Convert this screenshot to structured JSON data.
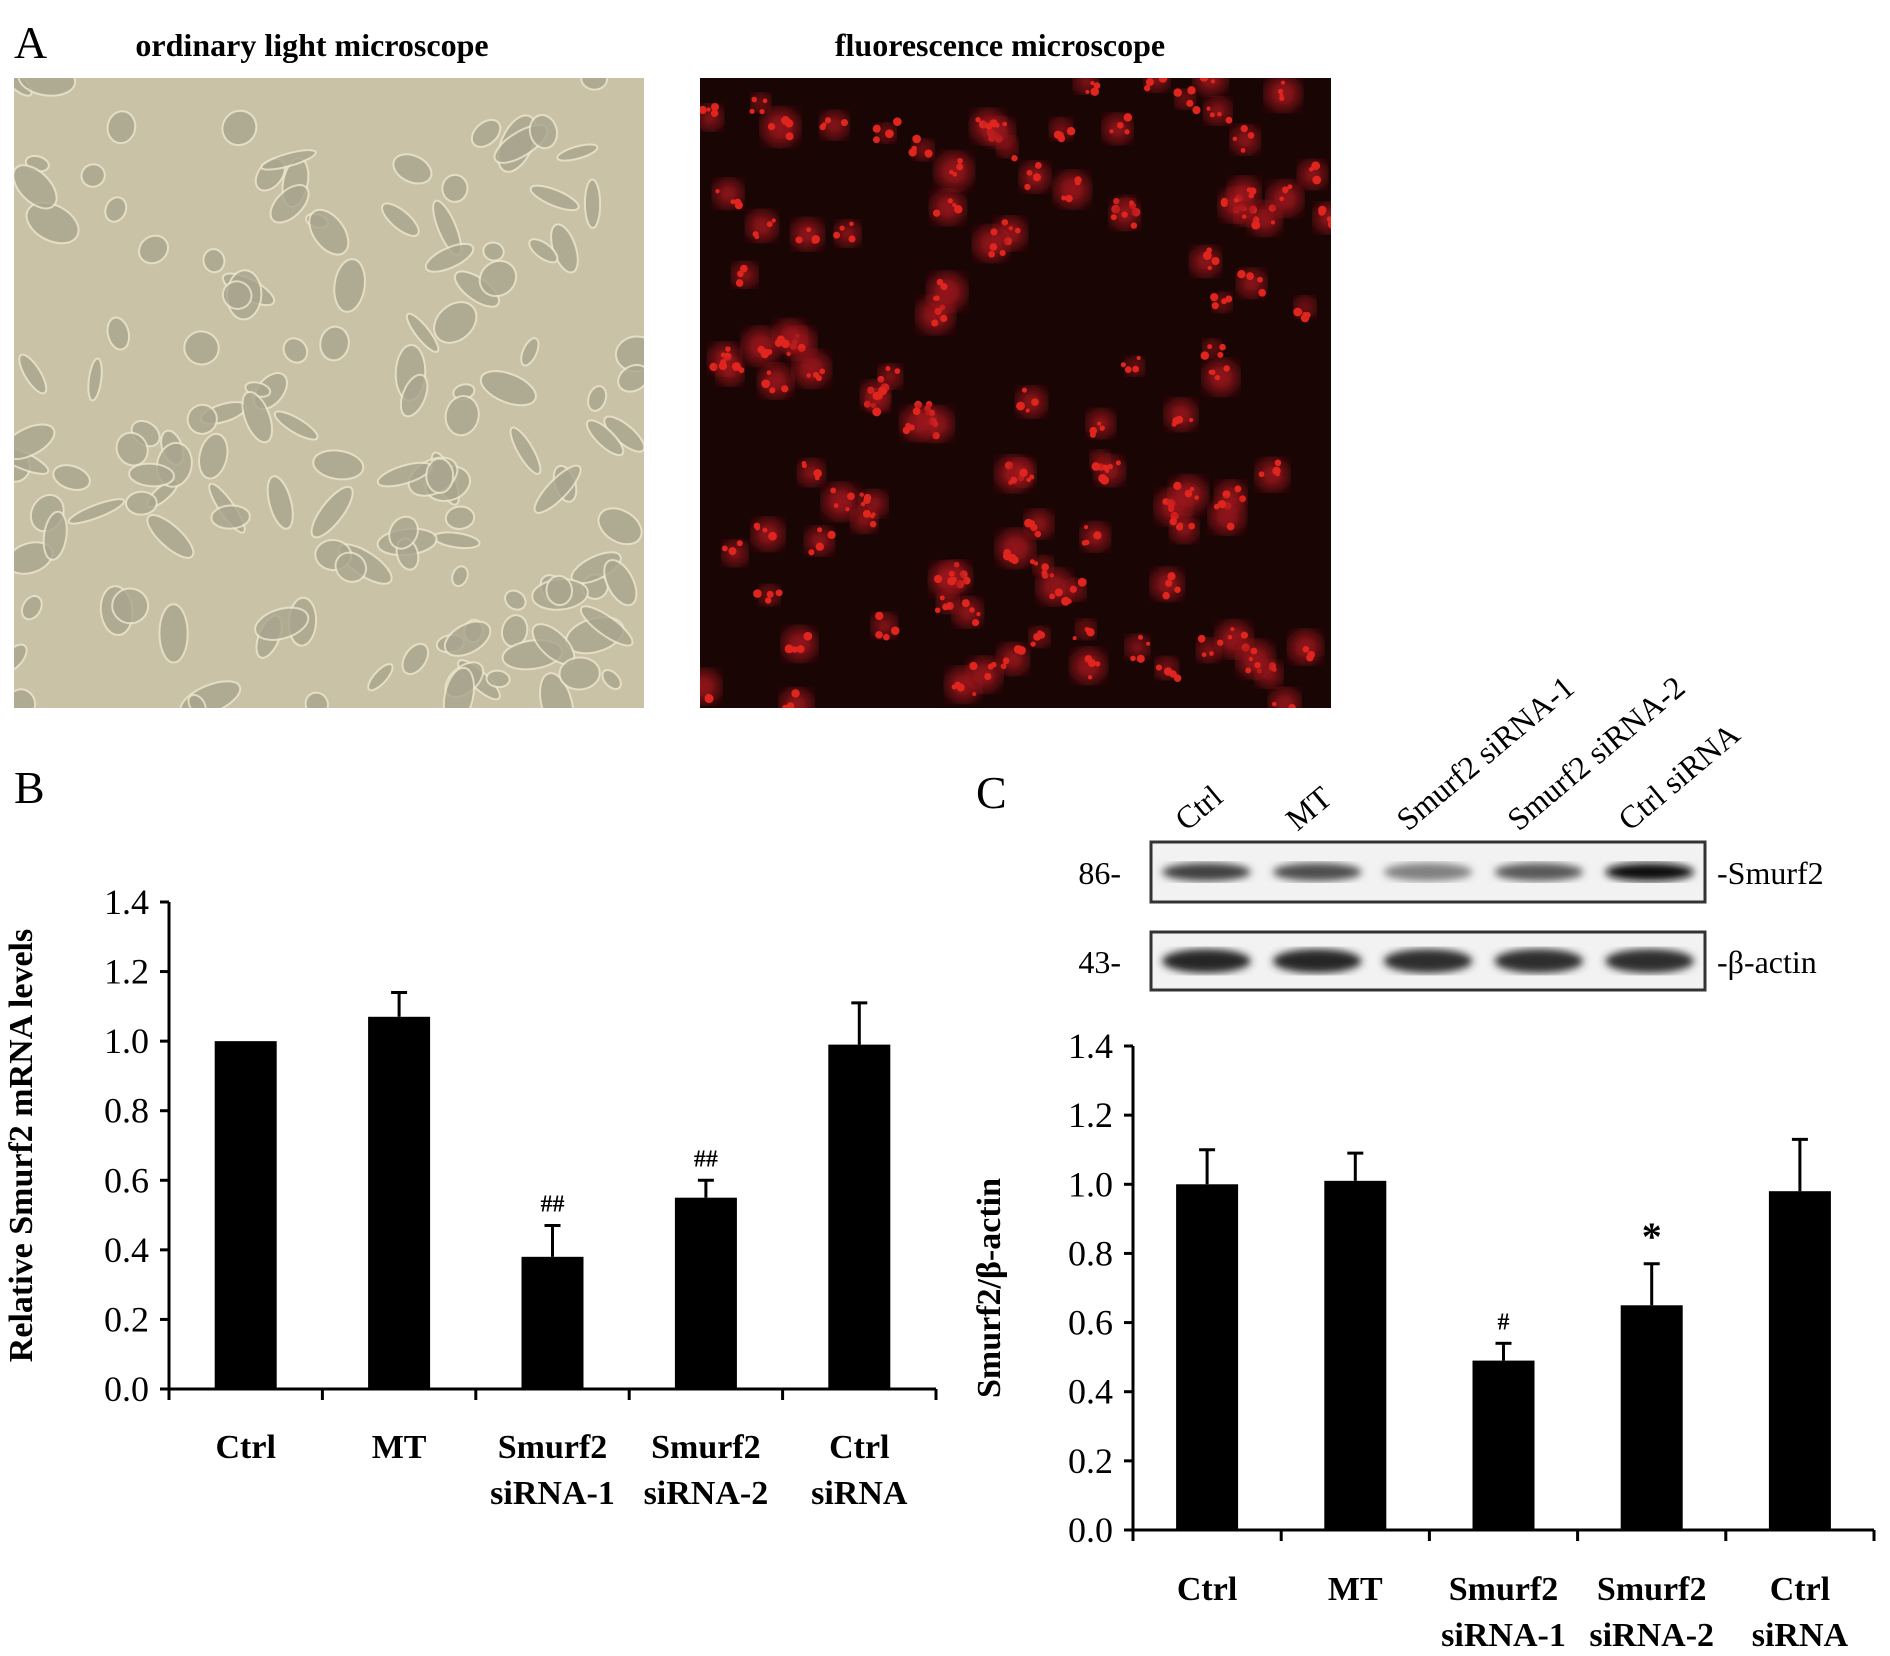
{
  "panel_a": {
    "letter": "A",
    "left_title": "ordinary light microscope",
    "right_title": "fluorescence microscope",
    "colors": {
      "light_bg": "#c9c2a6",
      "fluor_bg": "#1a0505",
      "fluor_cell": "#e0251e"
    }
  },
  "panel_c_blot": {
    "letter": "C",
    "lanes": [
      "Ctrl",
      "MT",
      "Smurf2 siRNA-1",
      "Smurf2 siRNA-2",
      "Ctrl siRNA"
    ],
    "rows": [
      {
        "marker": "86-",
        "label": "-Smurf2",
        "intensity": [
          0.75,
          0.7,
          0.5,
          0.65,
          0.95
        ]
      },
      {
        "marker": "43-",
        "label": "-β-actin",
        "intensity": [
          0.85,
          0.85,
          0.82,
          0.82,
          0.82
        ]
      }
    ]
  },
  "chart_data": [
    {
      "type": "bar",
      "panel": "B",
      "ylabel": "Relative Smurf2 mRNA levels",
      "xlabel": "",
      "categories": [
        [
          "Ctrl"
        ],
        [
          "MT"
        ],
        [
          "Smurf2",
          "siRNA-1"
        ],
        [
          "Smurf2",
          "siRNA-2"
        ],
        [
          "Ctrl",
          "siRNA"
        ]
      ],
      "values": [
        1.0,
        1.07,
        0.38,
        0.55,
        0.99
      ],
      "errors": [
        0.0,
        0.07,
        0.09,
        0.05,
        0.12
      ],
      "annotations": [
        "",
        "",
        "##",
        "##",
        ""
      ],
      "ylim": [
        0,
        1.4
      ],
      "yticks": [
        "0.0",
        "0.2",
        "0.4",
        "0.6",
        "0.8",
        "1.0",
        "1.2",
        "1.4"
      ],
      "grid": false,
      "bar_color": "#000000"
    },
    {
      "type": "bar",
      "panel": "C",
      "ylabel": "Smurf2/β-actin",
      "xlabel": "",
      "categories": [
        [
          "Ctrl"
        ],
        [
          "MT"
        ],
        [
          "Smurf2",
          "siRNA-1"
        ],
        [
          "Smurf2",
          "siRNA-2"
        ],
        [
          "Ctrl",
          "siRNA"
        ]
      ],
      "values": [
        1.0,
        1.01,
        0.49,
        0.65,
        0.98
      ],
      "errors": [
        0.1,
        0.08,
        0.05,
        0.12,
        0.15
      ],
      "annotations": [
        "",
        "",
        "#",
        "*",
        ""
      ],
      "ylim": [
        0,
        1.4
      ],
      "yticks": [
        "0.0",
        "0.2",
        "0.4",
        "0.6",
        "0.8",
        "1.0",
        "1.2",
        "1.4"
      ],
      "grid": false,
      "bar_color": "#000000"
    }
  ]
}
